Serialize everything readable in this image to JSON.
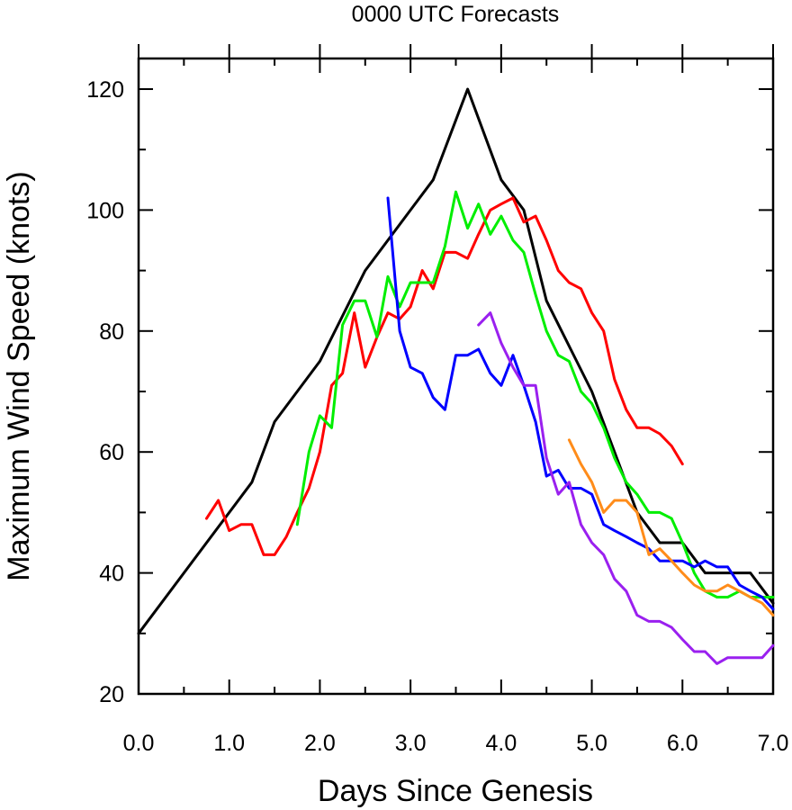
{
  "chart_data": {
    "type": "line",
    "title": "0000 UTC Forecasts",
    "xlabel": "Days Since Genesis",
    "ylabel": "Maximum Wind Speed (knots)",
    "xlim": [
      0,
      7
    ],
    "ylim": [
      20,
      125
    ],
    "x_ticks": [
      "0.0",
      "1.0",
      "2.0",
      "3.0",
      "4.0",
      "5.0",
      "6.0",
      "7.0"
    ],
    "y_ticks": [
      "20",
      "40",
      "60",
      "80",
      "100",
      "120"
    ],
    "grid": false,
    "series": [
      {
        "color": "#000000",
        "points": [
          [
            0,
            30
          ],
          [
            1.25,
            55
          ],
          [
            1.5,
            65
          ],
          [
            2.0,
            75
          ],
          [
            2.5,
            90
          ],
          [
            3.0,
            100
          ],
          [
            3.25,
            105
          ],
          [
            3.63,
            120
          ],
          [
            4.0,
            105
          ],
          [
            4.25,
            100
          ],
          [
            4.5,
            85
          ],
          [
            5.0,
            70
          ],
          [
            5.25,
            60
          ],
          [
            5.5,
            50
          ],
          [
            5.75,
            45
          ],
          [
            6.0,
            45
          ],
          [
            6.25,
            40
          ],
          [
            6.5,
            40
          ],
          [
            6.75,
            40
          ],
          [
            7.0,
            35
          ]
        ]
      },
      {
        "color": "#ff0000",
        "points": [
          [
            0.75,
            49
          ],
          [
            0.88,
            52
          ],
          [
            1.0,
            47
          ],
          [
            1.13,
            48
          ],
          [
            1.25,
            48
          ],
          [
            1.38,
            43
          ],
          [
            1.5,
            43
          ],
          [
            1.63,
            46
          ],
          [
            1.75,
            50
          ],
          [
            1.88,
            54
          ],
          [
            2.0,
            60
          ],
          [
            2.13,
            71
          ],
          [
            2.25,
            73
          ],
          [
            2.38,
            83
          ],
          [
            2.5,
            74
          ],
          [
            2.63,
            79
          ],
          [
            2.75,
            83
          ],
          [
            2.88,
            82
          ],
          [
            3.0,
            84
          ],
          [
            3.13,
            90
          ],
          [
            3.25,
            87
          ],
          [
            3.38,
            93
          ],
          [
            3.5,
            93
          ],
          [
            3.63,
            92
          ],
          [
            3.75,
            96
          ],
          [
            3.88,
            100
          ],
          [
            4.0,
            101
          ],
          [
            4.13,
            102
          ],
          [
            4.25,
            98
          ],
          [
            4.38,
            99
          ],
          [
            4.5,
            95
          ],
          [
            4.63,
            90
          ],
          [
            4.75,
            88
          ],
          [
            4.88,
            87
          ],
          [
            5.0,
            83
          ],
          [
            5.13,
            80
          ],
          [
            5.25,
            72
          ],
          [
            5.38,
            67
          ],
          [
            5.5,
            64
          ],
          [
            5.63,
            64
          ],
          [
            5.75,
            63
          ],
          [
            5.88,
            61
          ],
          [
            6.0,
            58
          ]
        ]
      },
      {
        "color": "#00ee00",
        "points": [
          [
            1.75,
            48
          ],
          [
            1.88,
            60
          ],
          [
            2.0,
            66
          ],
          [
            2.13,
            64
          ],
          [
            2.25,
            81
          ],
          [
            2.38,
            85
          ],
          [
            2.5,
            85
          ],
          [
            2.63,
            79
          ],
          [
            2.75,
            89
          ],
          [
            2.88,
            84
          ],
          [
            3.0,
            88
          ],
          [
            3.13,
            88
          ],
          [
            3.25,
            88
          ],
          [
            3.38,
            94
          ],
          [
            3.5,
            103
          ],
          [
            3.63,
            97
          ],
          [
            3.75,
            101
          ],
          [
            3.88,
            96
          ],
          [
            4.0,
            99
          ],
          [
            4.13,
            95
          ],
          [
            4.25,
            93
          ],
          [
            4.38,
            86
          ],
          [
            4.5,
            80
          ],
          [
            4.63,
            76
          ],
          [
            4.75,
            75
          ],
          [
            4.88,
            70
          ],
          [
            5.0,
            68
          ],
          [
            5.13,
            64
          ],
          [
            5.25,
            59
          ],
          [
            5.38,
            55
          ],
          [
            5.5,
            53
          ],
          [
            5.63,
            50
          ],
          [
            5.75,
            50
          ],
          [
            5.88,
            49
          ],
          [
            6.0,
            45
          ],
          [
            6.13,
            40
          ],
          [
            6.25,
            37
          ],
          [
            6.38,
            36
          ],
          [
            6.5,
            36
          ],
          [
            6.63,
            37
          ],
          [
            6.75,
            36
          ],
          [
            6.88,
            36
          ],
          [
            7.0,
            36
          ]
        ]
      },
      {
        "color": "#0000ff",
        "points": [
          [
            2.75,
            102
          ],
          [
            2.88,
            80
          ],
          [
            3.0,
            74
          ],
          [
            3.13,
            73
          ],
          [
            3.25,
            69
          ],
          [
            3.38,
            67
          ],
          [
            3.5,
            76
          ],
          [
            3.63,
            76
          ],
          [
            3.75,
            77
          ],
          [
            3.88,
            73
          ],
          [
            4.0,
            71
          ],
          [
            4.13,
            76
          ],
          [
            4.25,
            71
          ],
          [
            4.38,
            65
          ],
          [
            4.5,
            56
          ],
          [
            4.63,
            57
          ],
          [
            4.75,
            54
          ],
          [
            4.88,
            54
          ],
          [
            5.0,
            53
          ],
          [
            5.13,
            48
          ],
          [
            5.25,
            47
          ],
          [
            5.38,
            46
          ],
          [
            5.5,
            45
          ],
          [
            5.63,
            44
          ],
          [
            5.75,
            42
          ],
          [
            5.88,
            42
          ],
          [
            6.0,
            42
          ],
          [
            6.13,
            41
          ],
          [
            6.25,
            42
          ],
          [
            6.38,
            41
          ],
          [
            6.5,
            41
          ],
          [
            6.63,
            38
          ],
          [
            6.75,
            37
          ],
          [
            6.88,
            36
          ],
          [
            7.0,
            34
          ]
        ]
      },
      {
        "color": "#9a20ef",
        "points": [
          [
            3.75,
            81
          ],
          [
            3.88,
            83
          ],
          [
            4.0,
            78
          ],
          [
            4.13,
            74
          ],
          [
            4.25,
            71
          ],
          [
            4.38,
            71
          ],
          [
            4.5,
            59
          ],
          [
            4.63,
            53
          ],
          [
            4.75,
            55
          ],
          [
            4.88,
            48
          ],
          [
            5.0,
            45
          ],
          [
            5.13,
            43
          ],
          [
            5.25,
            39
          ],
          [
            5.38,
            37
          ],
          [
            5.5,
            33
          ],
          [
            5.63,
            32
          ],
          [
            5.75,
            32
          ],
          [
            5.88,
            31
          ],
          [
            6.0,
            29
          ],
          [
            6.13,
            27
          ],
          [
            6.25,
            27
          ],
          [
            6.38,
            25
          ],
          [
            6.5,
            26
          ],
          [
            6.63,
            26
          ],
          [
            6.75,
            26
          ],
          [
            6.88,
            26
          ],
          [
            7.0,
            28
          ]
        ]
      },
      {
        "color": "#ff8c1a",
        "points": [
          [
            4.75,
            62
          ],
          [
            4.88,
            58
          ],
          [
            5.0,
            55
          ],
          [
            5.13,
            50
          ],
          [
            5.25,
            52
          ],
          [
            5.38,
            52
          ],
          [
            5.5,
            50
          ],
          [
            5.63,
            43
          ],
          [
            5.75,
            44
          ],
          [
            5.88,
            42
          ],
          [
            6.0,
            40
          ],
          [
            6.13,
            38
          ],
          [
            6.25,
            37
          ],
          [
            6.38,
            37
          ],
          [
            6.5,
            38
          ],
          [
            6.63,
            37
          ],
          [
            6.75,
            36
          ],
          [
            6.88,
            35
          ],
          [
            7.0,
            33
          ]
        ]
      }
    ]
  }
}
